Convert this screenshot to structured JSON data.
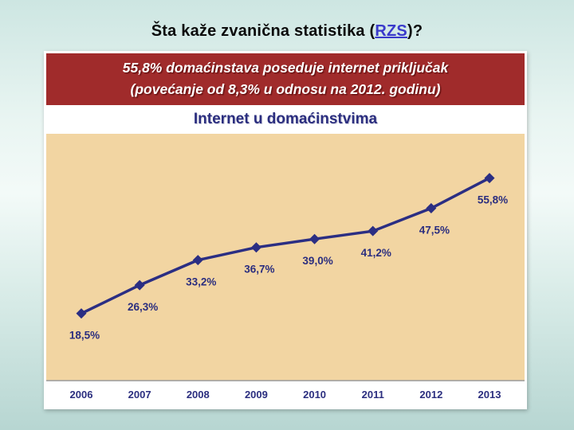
{
  "slide": {
    "title_prefix": "Šta kaže zvanična statistika (",
    "title_link": "RZS",
    "title_suffix": ")?"
  },
  "banner": {
    "line1": "55,8% domaćinstava poseduje internet priključak",
    "line2": "(povećanje od 8,3% u odnosu na 2012. godinu)"
  },
  "chart_data": {
    "type": "line",
    "title": "Internet u domaćinstvima",
    "categories": [
      "2006",
      "2007",
      "2008",
      "2009",
      "2010",
      "2011",
      "2012",
      "2013"
    ],
    "values": [
      18.5,
      26.3,
      33.2,
      36.7,
      39.0,
      41.2,
      47.5,
      55.8
    ],
    "point_labels": [
      "18,5%",
      "26,3%",
      "33,2%",
      "36,7%",
      "39,0%",
      "41,2%",
      "47,5%",
      "55,8%"
    ],
    "xlabel": "",
    "ylabel": "",
    "ylim": [
      0,
      68
    ],
    "grid": false,
    "legend": "none",
    "marker": "diamond",
    "colors": {
      "line": "#2b2e83",
      "marker": "#2b2e83",
      "label": "#2b2e7f",
      "plot_bg": "#f2d5a2",
      "axis_bg": "#ffffff",
      "axis_line": "#9a9a9a",
      "banner_bg": "#a02b2b"
    }
  }
}
